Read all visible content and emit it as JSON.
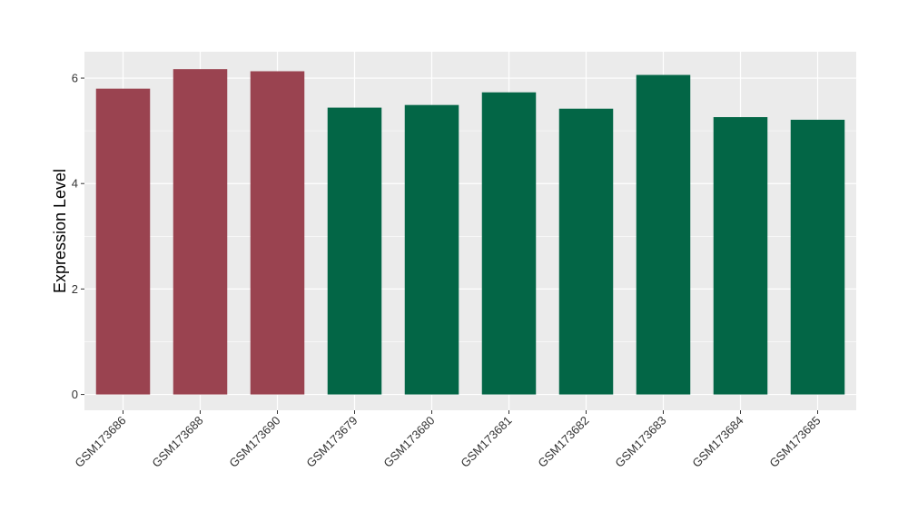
{
  "chart_data": {
    "type": "bar",
    "title": "",
    "xlabel": "",
    "ylabel": "Expression Level",
    "categories": [
      "GSM173686",
      "GSM173688",
      "GSM173690",
      "GSM173679",
      "GSM173680",
      "GSM173681",
      "GSM173682",
      "GSM173683",
      "GSM173684",
      "GSM173685"
    ],
    "values": [
      5.8,
      6.17,
      6.13,
      5.44,
      5.49,
      5.73,
      5.42,
      6.06,
      5.26,
      5.21
    ],
    "bar_colors": [
      "#9a4350",
      "#9a4350",
      "#9a4350",
      "#036646",
      "#036646",
      "#036646",
      "#036646",
      "#036646",
      "#036646",
      "#036646"
    ],
    "ylim": [
      -0.3,
      6.5
    ],
    "yticks": [
      0,
      2,
      4,
      6
    ],
    "grid": true,
    "panel_background": "#ebebeb",
    "gridline_color": "#ffffff"
  }
}
